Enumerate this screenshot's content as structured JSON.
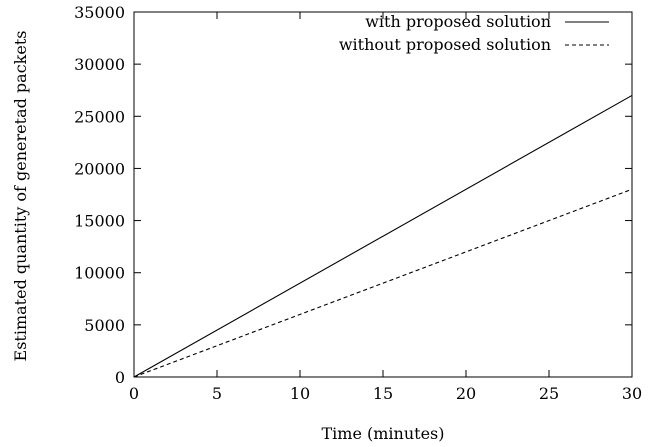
{
  "chart_data": {
    "type": "line",
    "title": "",
    "xlabel": "Time (minutes)",
    "ylabel": "Estimated quantity of generetad packets",
    "xlim": [
      0,
      30
    ],
    "ylim": [
      0,
      35000
    ],
    "xticks": [
      "0",
      "5",
      "10",
      "15",
      "20",
      "25",
      "30"
    ],
    "yticks": [
      "0",
      "5000",
      "10000",
      "15000",
      "20000",
      "25000",
      "30000",
      "35000"
    ],
    "grid": false,
    "legend_position": "top-right",
    "series": [
      {
        "name": "with proposed solution",
        "style": "solid",
        "color": "#000000",
        "x": [
          0,
          30
        ],
        "y": [
          0,
          27000
        ]
      },
      {
        "name": "without proposed solution",
        "style": "dashed",
        "color": "#000000",
        "x": [
          0,
          30
        ],
        "y": [
          0,
          18000
        ]
      }
    ]
  }
}
